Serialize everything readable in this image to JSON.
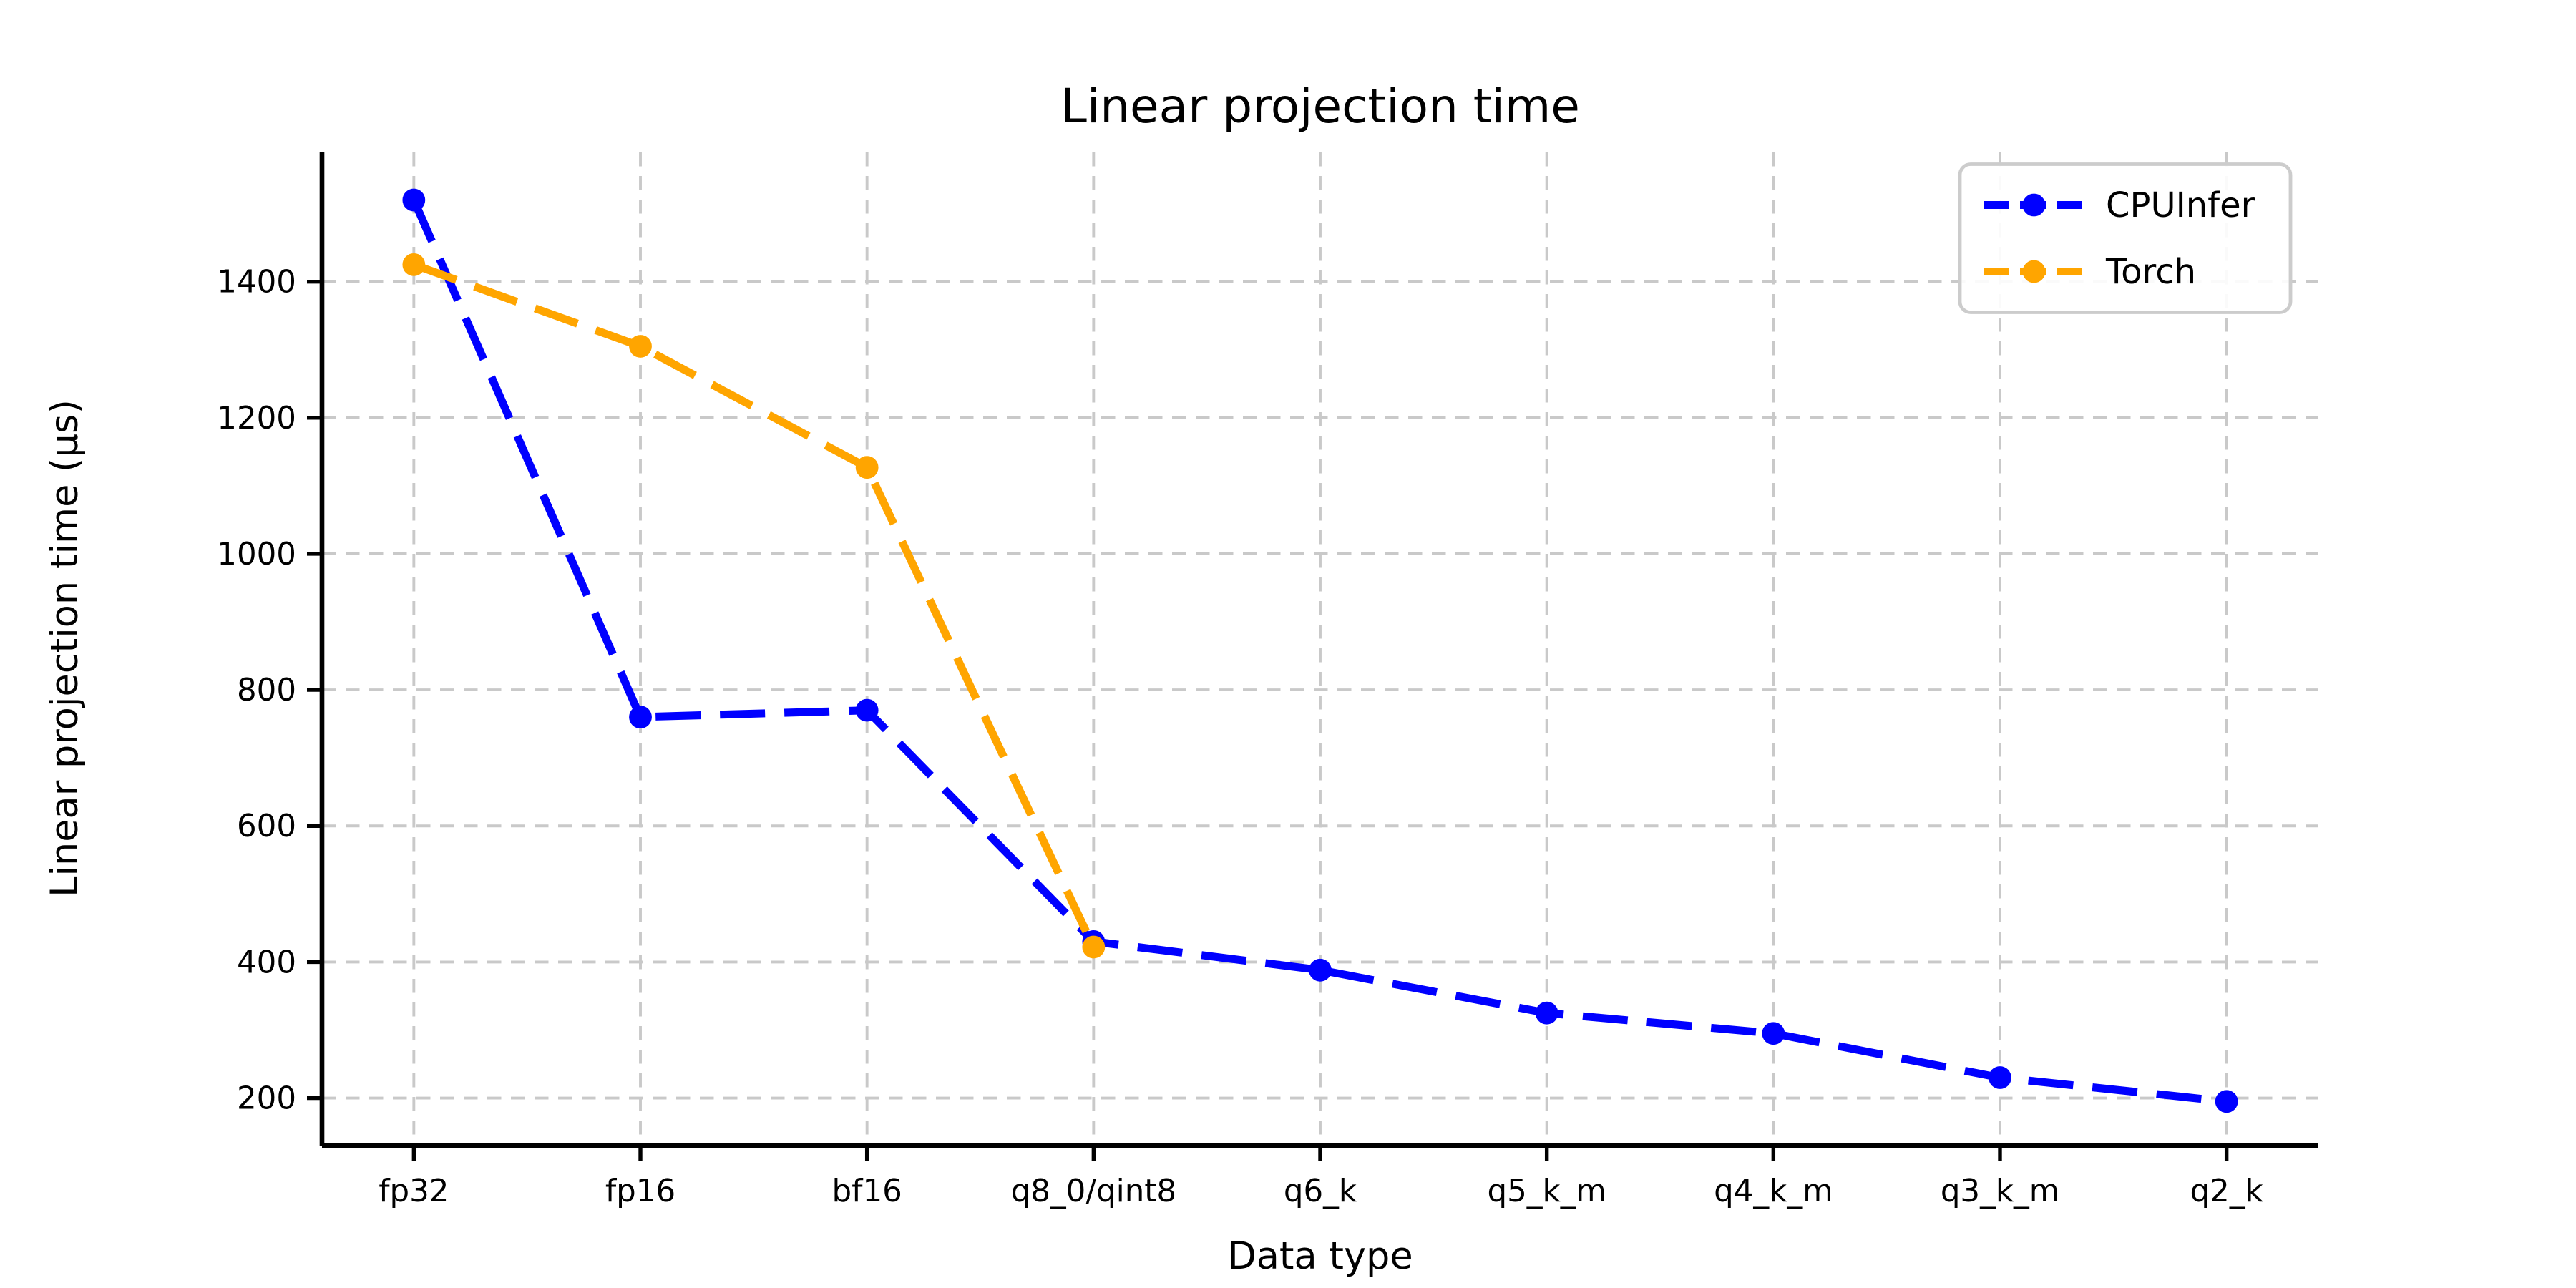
{
  "page": {
    "background": "#ffffff"
  },
  "chart_data": {
    "type": "line",
    "title": "Linear projection time",
    "xlabel": "Data type",
    "ylabel": "Linear projection time (µs)",
    "categories": [
      "fp32",
      "fp16",
      "bf16",
      "q8_0/qint8",
      "q6_k",
      "q5_k_m",
      "q4_k_m",
      "q3_k_m",
      "q2_k"
    ],
    "series": [
      {
        "name": "CPUInfer",
        "color": "#0000ff",
        "linestyle": "dashed",
        "marker": "circle",
        "values": [
          1520,
          760,
          770,
          430,
          388,
          325,
          295,
          230,
          195
        ]
      },
      {
        "name": "Torch",
        "color": "#ffa500",
        "linestyle": "dashed",
        "marker": "circle",
        "values": [
          1425,
          1305,
          1127,
          422
        ]
      }
    ],
    "ylim": [
      130,
      1590
    ],
    "yticks": [
      200,
      400,
      600,
      800,
      1000,
      1200,
      1400
    ],
    "grid": true,
    "grid_style": "dashed",
    "legend_position": "upper right",
    "colors": {
      "grid": "#c9c9c9",
      "spine": "#000000",
      "tick": "#000000",
      "text": "#000000",
      "legend_border": "#cccccc",
      "legend_bg": "#ffffff"
    }
  }
}
